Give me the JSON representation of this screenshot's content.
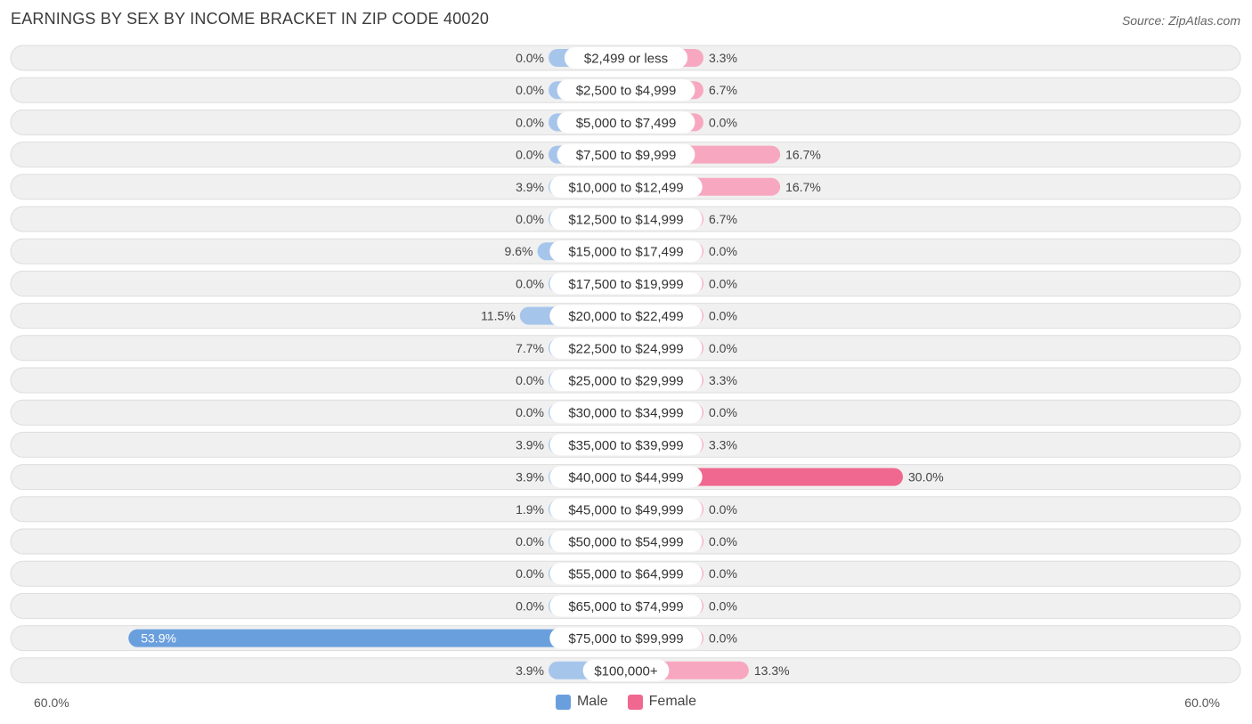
{
  "header": {
    "title": "EARNINGS BY SEX BY INCOME BRACKET IN ZIP CODE 40020",
    "source": "Source: ZipAtlas.com"
  },
  "colors": {
    "male": "#6a9fdd",
    "male_light": "#a6c5eb",
    "female": "#f0688f",
    "female_light": "#f7a8c0",
    "row_bg": "#f0f0f0",
    "row_border": "#dddddd"
  },
  "legend": {
    "male_label": "Male",
    "female_label": "Female"
  },
  "axis": {
    "left_label": "60.0%",
    "right_label": "60.0%"
  },
  "chart_data": {
    "type": "bar",
    "orientation": "horizontal-diverging",
    "title": "EARNINGS BY SEX BY INCOME BRACKET IN ZIP CODE 40020",
    "xlim": [
      -60,
      60
    ],
    "categories": [
      "$2,499 or less",
      "$2,500 to $4,999",
      "$5,000 to $7,499",
      "$7,500 to $9,999",
      "$10,000 to $12,499",
      "$12,500 to $14,999",
      "$15,000 to $17,499",
      "$17,500 to $19,999",
      "$20,000 to $22,499",
      "$22,500 to $24,999",
      "$25,000 to $29,999",
      "$30,000 to $34,999",
      "$35,000 to $39,999",
      "$40,000 to $44,999",
      "$45,000 to $49,999",
      "$50,000 to $54,999",
      "$55,000 to $64,999",
      "$65,000 to $74,999",
      "$75,000 to $99,999",
      "$100,000+"
    ],
    "series": [
      {
        "name": "Male",
        "values": [
          0.0,
          0.0,
          0.0,
          0.0,
          3.9,
          0.0,
          9.6,
          0.0,
          11.5,
          7.7,
          0.0,
          0.0,
          3.9,
          3.9,
          1.9,
          0.0,
          0.0,
          0.0,
          53.9,
          3.9
        ],
        "labels": [
          "0.0%",
          "0.0%",
          "0.0%",
          "0.0%",
          "3.9%",
          "0.0%",
          "9.6%",
          "0.0%",
          "11.5%",
          "7.7%",
          "0.0%",
          "0.0%",
          "3.9%",
          "3.9%",
          "1.9%",
          "0.0%",
          "0.0%",
          "0.0%",
          "53.9%",
          "3.9%"
        ]
      },
      {
        "name": "Female",
        "values": [
          3.3,
          6.7,
          0.0,
          16.7,
          16.7,
          6.7,
          0.0,
          0.0,
          0.0,
          0.0,
          3.3,
          0.0,
          3.3,
          30.0,
          0.0,
          0.0,
          0.0,
          0.0,
          0.0,
          13.3
        ],
        "labels": [
          "3.3%",
          "6.7%",
          "0.0%",
          "16.7%",
          "16.7%",
          "6.7%",
          "0.0%",
          "0.0%",
          "0.0%",
          "0.0%",
          "3.3%",
          "0.0%",
          "3.3%",
          "30.0%",
          "0.0%",
          "0.0%",
          "0.0%",
          "0.0%",
          "0.0%",
          "13.3%"
        ]
      }
    ],
    "legend_position": "bottom-center"
  }
}
